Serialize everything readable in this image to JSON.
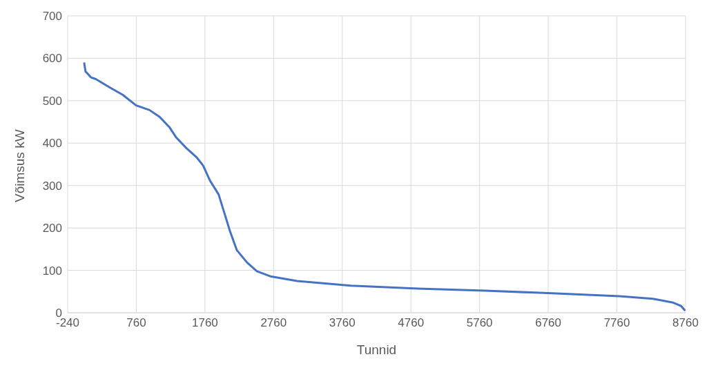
{
  "chart_data": {
    "type": "line",
    "xlabel": "Tunnid",
    "ylabel": "Võimsus kW",
    "x": [
      0,
      20,
      100,
      170,
      366,
      561,
      757,
      952,
      1099,
      1245,
      1343,
      1490,
      1636,
      1734,
      1832,
      1959,
      2047,
      2125,
      2223,
      2370,
      2517,
      2712,
      3103,
      3885,
      4863,
      5843,
      6820,
      7798,
      8286,
      8579,
      8696,
      8754
    ],
    "series": [
      {
        "color": "#4472c4",
        "values": [
          590,
          569,
          555,
          551,
          532,
          514,
          489,
          478,
          462,
          437,
          413,
          388,
          367,
          347,
          312,
          279,
          233,
          192,
          148,
          119,
          98,
          86,
          75,
          64,
          57,
          52,
          46,
          39,
          33,
          24,
          16,
          5
        ]
      }
    ],
    "xlim": [
      -240,
      8760
    ],
    "xticks": [
      -240,
      760,
      1760,
      2760,
      3760,
      4760,
      5760,
      6760,
      7760,
      8760
    ],
    "ylim": [
      0,
      700
    ],
    "yticks": [
      0,
      100,
      200,
      300,
      400,
      500,
      600,
      700
    ],
    "grid": true,
    "legend": false,
    "marker": "none",
    "line_style": "solid"
  }
}
